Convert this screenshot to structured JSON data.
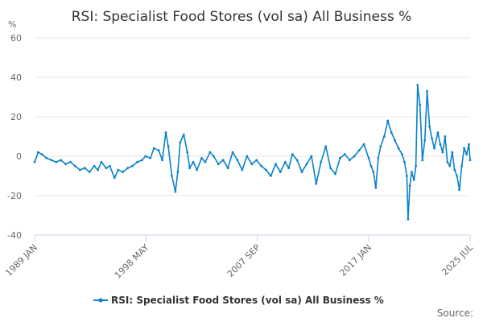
{
  "chart_data": {
    "type": "line",
    "title": "RSI: Specialist Food Stores (vol sa) All Business %",
    "unit_label": "%",
    "ylim": [
      -40,
      60
    ],
    "y_ticks": [
      "60",
      "40",
      "20",
      "0",
      "-20",
      "-40"
    ],
    "y_tick_values": [
      60,
      40,
      20,
      0,
      -20,
      -40
    ],
    "xlim": [
      "1989 JAN",
      "2025 JUL"
    ],
    "x_ticks": [
      {
        "label": "1989 JAN",
        "value": 1989.0
      },
      {
        "label": "1998 MAY",
        "value": 1998.333
      },
      {
        "label": "2007 SEP",
        "value": 2007.667
      },
      {
        "label": "2017 JAN",
        "value": 2017.0
      },
      {
        "label": "2025 JUL",
        "value": 2025.5
      }
    ],
    "grid": "horizontal",
    "legend": "bottom-center",
    "source_label": "Source:",
    "colors": {
      "series": "#0a82c8",
      "grid": "#e6e6e6",
      "axis": "#ccd6eb"
    },
    "series": [
      {
        "name": "RSI: Specialist Food Stores (vol sa) All Business %",
        "x": [
          1989.0,
          1989.3,
          1989.6,
          1990.0,
          1990.4,
          1990.8,
          1991.2,
          1991.6,
          1992.0,
          1992.4,
          1992.8,
          1993.2,
          1993.6,
          1994.0,
          1994.3,
          1994.6,
          1995.0,
          1995.3,
          1995.7,
          1996.0,
          1996.4,
          1996.8,
          1997.2,
          1997.6,
          1998.0,
          1998.3,
          1998.7,
          1999.0,
          1999.4,
          1999.7,
          2000.0,
          2000.2,
          2000.5,
          2000.8,
          2001.0,
          2001.2,
          2001.5,
          2001.8,
          2002.0,
          2002.3,
          2002.6,
          2003.0,
          2003.3,
          2003.7,
          2004.0,
          2004.4,
          2004.8,
          2005.2,
          2005.6,
          2006.0,
          2006.4,
          2006.8,
          2007.2,
          2007.6,
          2008.0,
          2008.4,
          2008.8,
          2009.2,
          2009.6,
          2010.0,
          2010.3,
          2010.6,
          2011.0,
          2011.4,
          2011.8,
          2012.2,
          2012.6,
          2013.0,
          2013.4,
          2013.8,
          2014.2,
          2014.6,
          2015.0,
          2015.4,
          2015.8,
          2016.2,
          2016.6,
          2017.0,
          2017.2,
          2017.4,
          2017.6,
          2017.8,
          2018.0,
          2018.3,
          2018.6,
          2018.9,
          2019.2,
          2019.5,
          2019.8,
          2020.0,
          2020.2,
          2020.3,
          2020.45,
          2020.6,
          2020.8,
          2020.95,
          2021.1,
          2021.3,
          2021.5,
          2021.7,
          2021.9,
          2022.1,
          2022.3,
          2022.5,
          2022.8,
          2023.0,
          2023.2,
          2023.4,
          2023.6,
          2023.8,
          2024.0,
          2024.2,
          2024.4,
          2024.6,
          2024.8,
          2025.0,
          2025.2,
          2025.4,
          2025.5
        ],
        "values": [
          -3,
          2,
          1,
          -1,
          -2,
          -3,
          -2,
          -4,
          -3,
          -5,
          -7,
          -6,
          -8,
          -5,
          -7,
          -3,
          -6,
          -5,
          -11,
          -7,
          -8,
          -6,
          -5,
          -3,
          -2,
          0,
          -1,
          4,
          3,
          -2,
          12,
          5,
          -10,
          -18,
          -8,
          7,
          11,
          2,
          -6,
          -3,
          -7,
          -1,
          -3,
          2,
          0,
          -4,
          -2,
          -6,
          2,
          -2,
          -7,
          0,
          -4,
          -2,
          -5,
          -7,
          -10,
          -4,
          -8,
          -3,
          -6,
          1,
          -2,
          -8,
          -4,
          0,
          -14,
          -3,
          5,
          -6,
          -9,
          -1,
          1,
          -2,
          0,
          3,
          6,
          -1,
          -5,
          -8,
          -16,
          -1,
          5,
          10,
          18,
          12,
          8,
          4,
          1,
          -3,
          -10,
          -32,
          -15,
          -8,
          -12,
          -5,
          36,
          26,
          -2,
          8,
          33,
          15,
          9,
          4,
          12,
          6,
          2,
          10,
          -3,
          -5,
          2,
          -7,
          -10,
          -17,
          -5,
          4,
          1,
          6,
          -2
        ]
      }
    ]
  }
}
